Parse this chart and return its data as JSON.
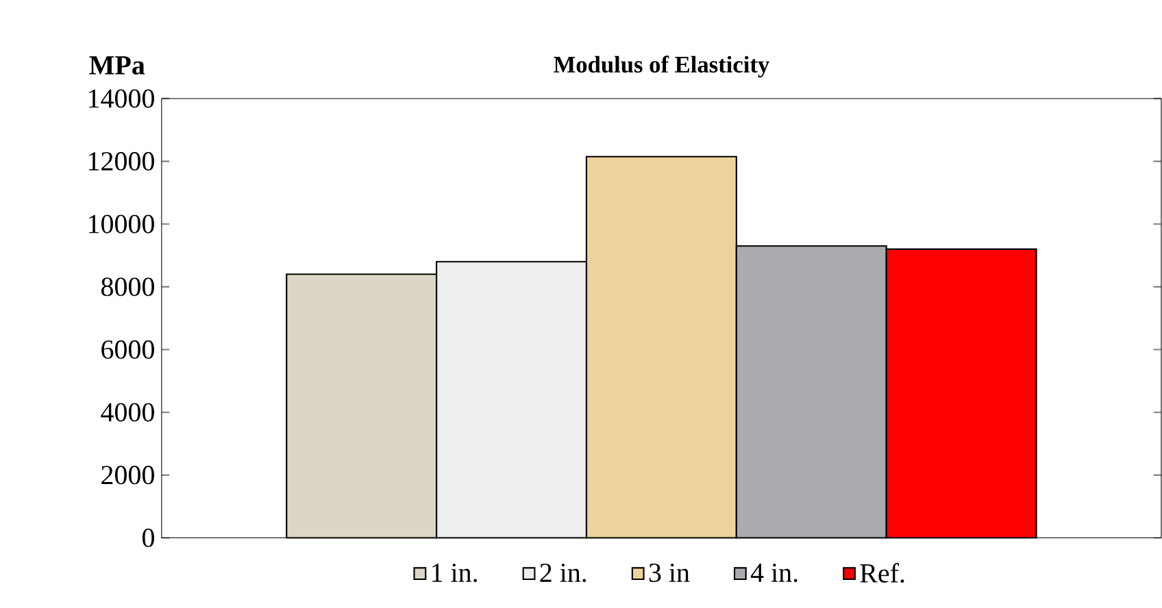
{
  "chart_data": {
    "type": "bar",
    "title": "Modulus of Elasticity",
    "ylabel": "MPa",
    "categories": [
      null
    ],
    "series": [
      {
        "name": "1 in.",
        "color": "#ddd5c5",
        "values": [
          8400
        ]
      },
      {
        "name": "2 in.",
        "color": "#eeeeee",
        "values": [
          8800
        ]
      },
      {
        "name": "3 in",
        "color": "#ecd39c",
        "values": [
          12150
        ]
      },
      {
        "name": "4 in.",
        "color": "#a9abae",
        "values": [
          9300
        ]
      },
      {
        "name": "Ref.",
        "color": "#ff0000",
        "values": [
          9200
        ]
      }
    ],
    "ylim": [
      0,
      14000
    ],
    "yticks": [
      0,
      2000,
      4000,
      6000,
      8000,
      10000,
      12000,
      14000
    ],
    "legend": "bottom"
  }
}
